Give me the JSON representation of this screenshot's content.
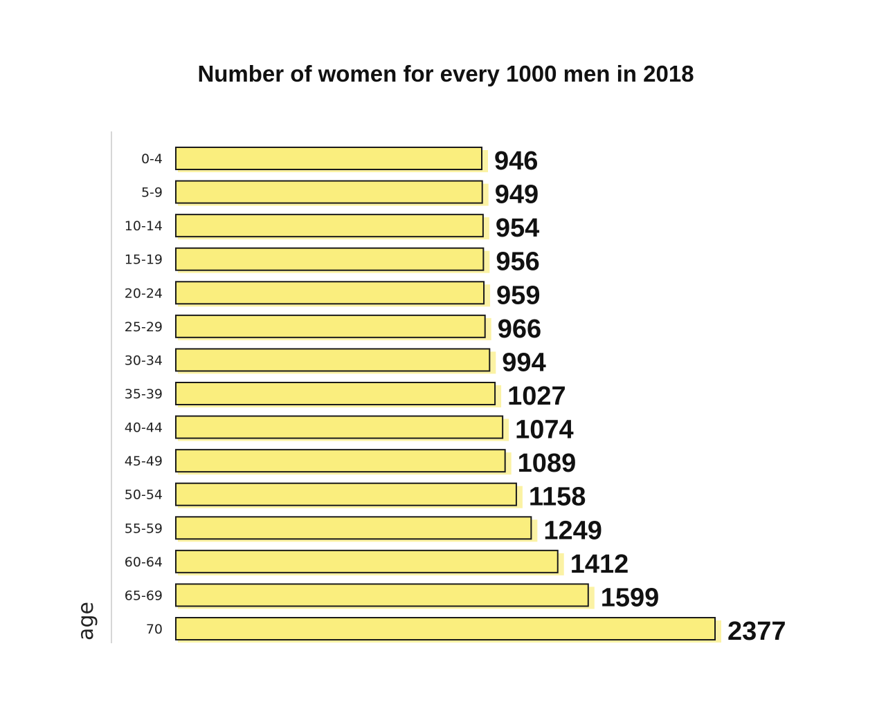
{
  "chart_data": {
    "type": "bar",
    "orientation": "horizontal",
    "title": "Number of women for every 1000 men in 2018",
    "xlabel": "",
    "ylabel": "age",
    "categories": [
      "0-4",
      "5-9",
      "10-14",
      "15-19",
      "20-24",
      "25-29",
      "30-34",
      "35-39",
      "40-44",
      "45-49",
      "50-54",
      "55-59",
      "60-64",
      "65-69",
      "70"
    ],
    "values": [
      946,
      949,
      954,
      956,
      959,
      966,
      994,
      1027,
      1074,
      1089,
      1158,
      1249,
      1412,
      1599,
      2377
    ],
    "bar_color": "#faee7e",
    "grid": false,
    "legend": "none"
  }
}
